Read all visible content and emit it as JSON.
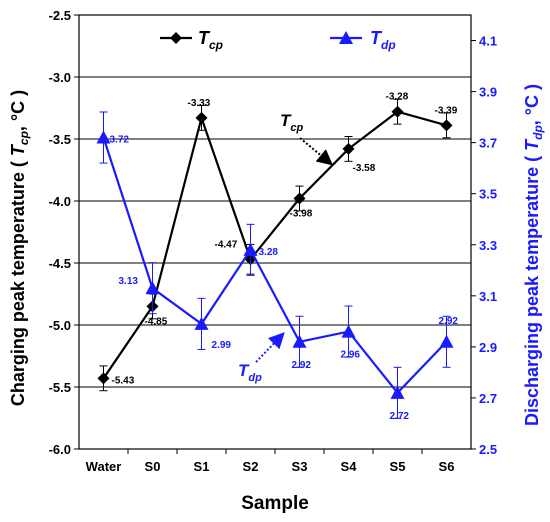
{
  "colors": {
    "cp": "#000000",
    "dp": "#1a1aff",
    "grid": "#000000",
    "left_axis": "#000000",
    "right_axis": "#1a1aff"
  },
  "chart_data": {
    "type": "line",
    "xlabel": "Sample",
    "categories": [
      "Water",
      "S0",
      "S1",
      "S2",
      "S3",
      "S4",
      "S5",
      "S6"
    ],
    "y_left": {
      "label_main": "Charging peak temperature ( ",
      "label_sym": "T",
      "label_sub": "cp",
      "label_unit": ", °C )",
      "range": [
        -6.0,
        -2.5
      ],
      "ticks": [
        -6.0,
        -5.5,
        -5.0,
        -4.5,
        -4.0,
        -3.5,
        -3.0,
        -2.5
      ],
      "tick_labels": [
        "-6.0",
        "-5.5",
        "-5.0",
        "-4.5",
        "-4.0",
        "-3.5",
        "-3.0",
        "-2.5"
      ]
    },
    "y_right": {
      "label_main": "Discharging peak temperature ( ",
      "label_sym": "T",
      "label_sub": "dp",
      "label_unit": ", °C )",
      "range": [
        2.5,
        4.2
      ],
      "ticks": [
        2.5,
        2.7,
        2.9,
        3.1,
        3.3,
        3.5,
        3.7,
        3.9,
        4.1
      ],
      "tick_labels": [
        "2.5",
        "2.7",
        "2.9",
        "3.1",
        "3.3",
        "3.5",
        "3.7",
        "3.9",
        "4.1"
      ]
    },
    "grid": "horizontal",
    "legend_position": "top",
    "series": [
      {
        "key": "cp",
        "name_sym": "T",
        "name_sub": "cp",
        "axis": "left",
        "marker": "diamond",
        "values": [
          -5.43,
          -4.85,
          -3.33,
          -4.47,
          -3.98,
          -3.58,
          -3.28,
          -3.39
        ],
        "labels": [
          "-5.43",
          "-4.85",
          "-3.33",
          "-4.47",
          "-3.98",
          "-3.58",
          "-3.28",
          "-3.39"
        ],
        "errors": [
          0.1,
          0.1,
          0.1,
          0.12,
          0.1,
          0.1,
          0.1,
          0.1
        ]
      },
      {
        "key": "dp",
        "name_sym": "T",
        "name_sub": "dp",
        "axis": "right",
        "marker": "triangle",
        "values": [
          3.72,
          3.13,
          2.99,
          3.28,
          2.92,
          2.96,
          2.72,
          2.92
        ],
        "labels": [
          "3.72",
          "3.13",
          "2.99",
          "3.28",
          "2.92",
          "2.96",
          "2.72",
          "2.92"
        ],
        "errors": [
          0.1,
          0.1,
          0.1,
          0.1,
          0.1,
          0.1,
          0.1,
          0.1
        ]
      }
    ],
    "annotations": [
      {
        "series": "cp",
        "sym": "T",
        "sub": "cp"
      },
      {
        "series": "dp",
        "sym": "T",
        "sub": "dp"
      }
    ]
  }
}
